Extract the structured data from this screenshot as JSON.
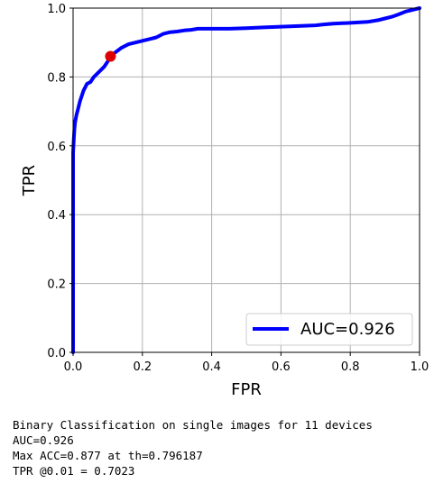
{
  "chart_data": {
    "type": "line",
    "title": "",
    "xlabel": "FPR",
    "ylabel": "TPR",
    "xlim": [
      0.0,
      1.0
    ],
    "ylim": [
      0.0,
      1.0
    ],
    "xticks": [
      "0.0",
      "0.2",
      "0.4",
      "0.6",
      "0.8",
      "1.0"
    ],
    "yticks": [
      "0.0",
      "0.2",
      "0.4",
      "0.6",
      "0.8",
      "1.0"
    ],
    "grid": true,
    "legend_position": "bottom-right",
    "series": [
      {
        "name": "AUC=0.926",
        "color": "#0000ff",
        "x": [
          0.0,
          0.0,
          0.002,
          0.004,
          0.006,
          0.01,
          0.015,
          0.02,
          0.03,
          0.04,
          0.05,
          0.06,
          0.07,
          0.08,
          0.09,
          0.1,
          0.11,
          0.12,
          0.14,
          0.16,
          0.18,
          0.2,
          0.22,
          0.24,
          0.26,
          0.28,
          0.3,
          0.32,
          0.34,
          0.36,
          0.4,
          0.45,
          0.5,
          0.55,
          0.6,
          0.65,
          0.7,
          0.72,
          0.75,
          0.8,
          0.85,
          0.88,
          0.9,
          0.92,
          0.94,
          0.96,
          0.98,
          1.0
        ],
        "y": [
          0.0,
          0.58,
          0.62,
          0.65,
          0.67,
          0.69,
          0.71,
          0.73,
          0.76,
          0.78,
          0.785,
          0.8,
          0.81,
          0.82,
          0.83,
          0.845,
          0.86,
          0.87,
          0.885,
          0.895,
          0.9,
          0.905,
          0.91,
          0.915,
          0.925,
          0.93,
          0.932,
          0.935,
          0.937,
          0.94,
          0.94,
          0.94,
          0.942,
          0.944,
          0.946,
          0.948,
          0.95,
          0.952,
          0.955,
          0.957,
          0.96,
          0.965,
          0.97,
          0.975,
          0.982,
          0.99,
          0.995,
          1.0
        ]
      }
    ],
    "marker": {
      "x": 0.108,
      "y": 0.86,
      "color": "#dd0000"
    }
  },
  "caption": [
    "Binary Classification on single images for 11 devices",
    "AUC=0.926",
    "Max ACC=0.877 at th=0.796187",
    "TPR @0.01 = 0.7023"
  ]
}
